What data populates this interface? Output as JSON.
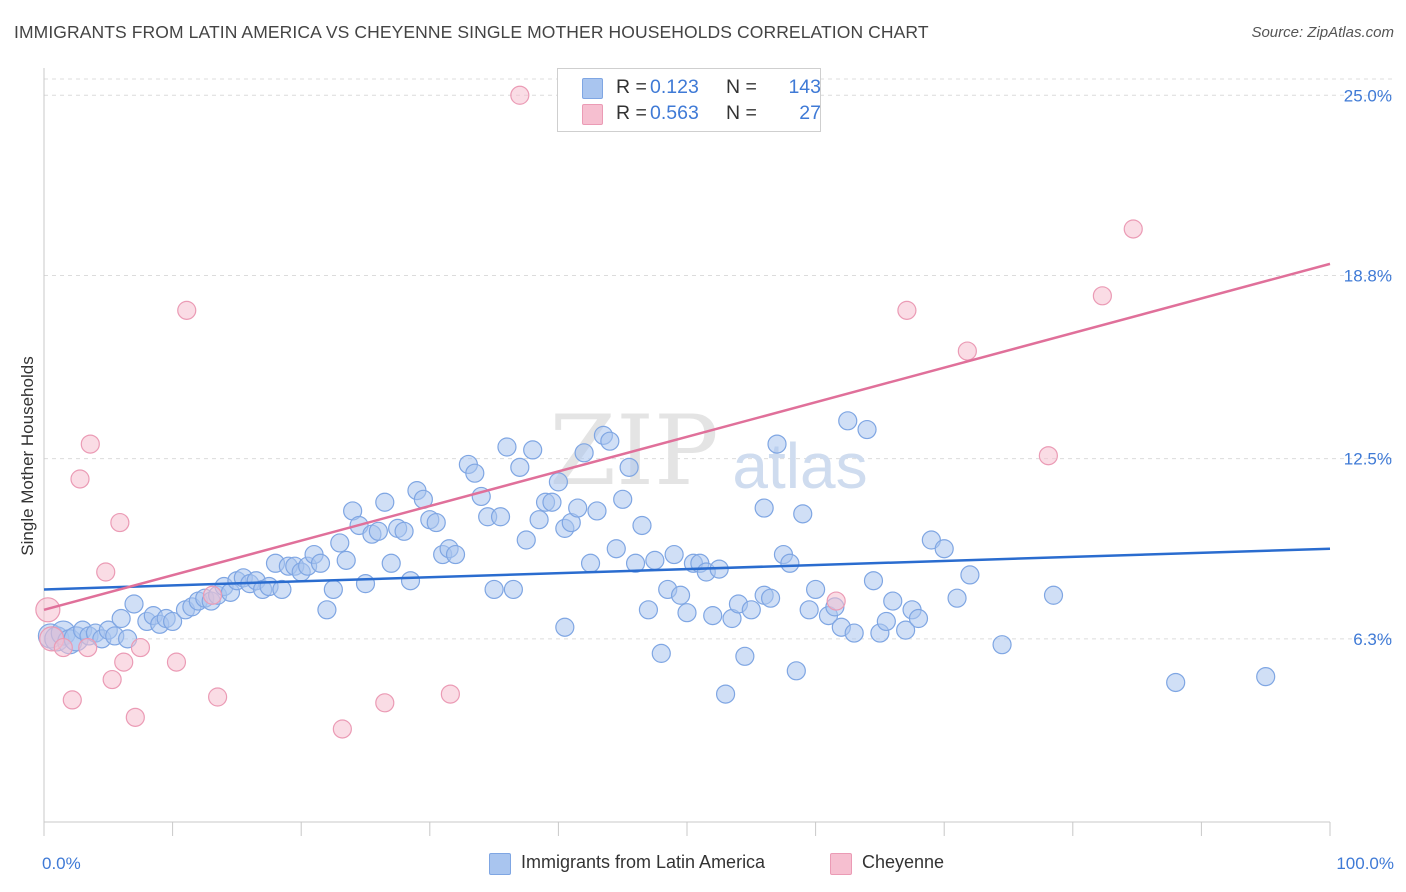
{
  "header": {
    "title": "IMMIGRANTS FROM LATIN AMERICA VS CHEYENNE SINGLE MOTHER HOUSEHOLDS CORRELATION CHART",
    "source": "Source: ZipAtlas.com"
  },
  "watermark": {
    "zip": "ZIP",
    "atlas": "atlas"
  },
  "legend_top": [
    {
      "r_label": "R =",
      "r_value": "0.123",
      "n_label": "N =",
      "n_value": "143"
    },
    {
      "r_label": "R =",
      "r_value": "0.563",
      "n_label": "N =",
      "n_value": "27"
    }
  ],
  "legend_bottom": [
    {
      "label": "Immigrants from Latin America"
    },
    {
      "label": "Cheyenne"
    }
  ],
  "chart_data": {
    "type": "scatter",
    "title": "IMMIGRANTS FROM LATIN AMERICA VS CHEYENNE SINGLE MOTHER HOUSEHOLDS CORRELATION CHART",
    "xlabel": "",
    "ylabel": "Single Mother Households",
    "xlim": [
      0,
      100
    ],
    "ylim": [
      0,
      25.8
    ],
    "x_tick_labels": [
      "0.0%",
      "100.0%"
    ],
    "y_ticks": [
      6.3,
      12.5,
      18.8,
      25.0
    ],
    "y_tick_labels": [
      "6.3%",
      "12.5%",
      "18.8%",
      "25.0%"
    ],
    "grid": "horizontal dashed",
    "colors": {
      "blue_fill": "#a9c5ef",
      "blue_stroke": "#7fa6e3",
      "blue_line": "#2a6ccf",
      "pink_fill": "#f6bfd0",
      "pink_stroke": "#eb9bb5",
      "pink_line": "#e0709a",
      "tick_label": "#3f7ad6"
    },
    "series": [
      {
        "name": "Immigrants from Latin America",
        "trend": {
          "x": [
            0,
            100
          ],
          "y": [
            8.0,
            9.4
          ]
        },
        "points": [
          [
            0.5,
            6.4
          ],
          [
            1.0,
            6.3
          ],
          [
            1.5,
            6.5
          ],
          [
            2.0,
            6.2
          ],
          [
            2.5,
            6.3
          ],
          [
            3.0,
            6.6
          ],
          [
            3.5,
            6.4
          ],
          [
            4.0,
            6.5
          ],
          [
            4.5,
            6.3
          ],
          [
            5.0,
            6.6
          ],
          [
            5.5,
            6.4
          ],
          [
            6.0,
            7.0
          ],
          [
            6.5,
            6.3
          ],
          [
            7.0,
            7.5
          ],
          [
            8.0,
            6.9
          ],
          [
            8.5,
            7.1
          ],
          [
            9.0,
            6.8
          ],
          [
            9.5,
            7.0
          ],
          [
            10.0,
            6.9
          ],
          [
            11.0,
            7.3
          ],
          [
            11.5,
            7.4
          ],
          [
            12.0,
            7.6
          ],
          [
            12.5,
            7.7
          ],
          [
            13.0,
            7.6
          ],
          [
            13.5,
            7.8
          ],
          [
            14.0,
            8.1
          ],
          [
            14.5,
            7.9
          ],
          [
            15.0,
            8.3
          ],
          [
            15.5,
            8.4
          ],
          [
            16.0,
            8.2
          ],
          [
            16.5,
            8.3
          ],
          [
            17.0,
            8.0
          ],
          [
            17.5,
            8.1
          ],
          [
            18.0,
            8.9
          ],
          [
            18.5,
            8.0
          ],
          [
            19.0,
            8.8
          ],
          [
            19.5,
            8.8
          ],
          [
            20.0,
            8.6
          ],
          [
            20.5,
            8.8
          ],
          [
            21.0,
            9.2
          ],
          [
            21.5,
            8.9
          ],
          [
            22.0,
            7.3
          ],
          [
            22.5,
            8.0
          ],
          [
            23.0,
            9.6
          ],
          [
            23.5,
            9.0
          ],
          [
            24.0,
            10.7
          ],
          [
            24.5,
            10.2
          ],
          [
            25.0,
            8.2
          ],
          [
            25.5,
            9.9
          ],
          [
            26.0,
            10.0
          ],
          [
            26.5,
            11.0
          ],
          [
            27.0,
            8.9
          ],
          [
            27.5,
            10.1
          ],
          [
            28.0,
            10.0
          ],
          [
            28.5,
            8.3
          ],
          [
            29.0,
            11.4
          ],
          [
            29.5,
            11.1
          ],
          [
            30.0,
            10.4
          ],
          [
            30.5,
            10.3
          ],
          [
            31.0,
            9.2
          ],
          [
            31.5,
            9.4
          ],
          [
            32.0,
            9.2
          ],
          [
            33.0,
            12.3
          ],
          [
            33.5,
            12.0
          ],
          [
            34.0,
            11.2
          ],
          [
            34.5,
            10.5
          ],
          [
            35.0,
            8.0
          ],
          [
            35.5,
            10.5
          ],
          [
            36.0,
            12.9
          ],
          [
            36.5,
            8.0
          ],
          [
            37.0,
            12.2
          ],
          [
            37.5,
            9.7
          ],
          [
            38.0,
            12.8
          ],
          [
            38.5,
            10.4
          ],
          [
            39.0,
            11.0
          ],
          [
            39.5,
            11.0
          ],
          [
            40.0,
            11.7
          ],
          [
            40.5,
            10.1
          ],
          [
            41.0,
            10.3
          ],
          [
            41.5,
            10.8
          ],
          [
            42.0,
            12.7
          ],
          [
            42.5,
            8.9
          ],
          [
            43.0,
            10.7
          ],
          [
            43.5,
            13.3
          ],
          [
            44.0,
            13.1
          ],
          [
            44.5,
            9.4
          ],
          [
            45.0,
            11.1
          ],
          [
            45.5,
            12.2
          ],
          [
            46.0,
            8.9
          ],
          [
            46.5,
            10.2
          ],
          [
            47.0,
            7.3
          ],
          [
            47.5,
            9.0
          ],
          [
            48.0,
            5.8
          ],
          [
            48.5,
            8.0
          ],
          [
            49.0,
            9.2
          ],
          [
            49.5,
            7.8
          ],
          [
            50.0,
            7.2
          ],
          [
            50.5,
            8.9
          ],
          [
            51.0,
            8.9
          ],
          [
            51.5,
            8.6
          ],
          [
            52.0,
            7.1
          ],
          [
            52.5,
            8.7
          ],
          [
            53.0,
            4.4
          ],
          [
            53.5,
            7.0
          ],
          [
            54.0,
            7.5
          ],
          [
            54.5,
            5.7
          ],
          [
            55.0,
            7.3
          ],
          [
            56.0,
            7.8
          ],
          [
            56.5,
            7.7
          ],
          [
            57.0,
            13.0
          ],
          [
            57.5,
            9.2
          ],
          [
            58.0,
            8.9
          ],
          [
            58.5,
            5.2
          ],
          [
            59.0,
            10.6
          ],
          [
            59.5,
            7.3
          ],
          [
            60.0,
            8.0
          ],
          [
            61.0,
            7.1
          ],
          [
            61.5,
            7.4
          ],
          [
            62.0,
            6.7
          ],
          [
            62.5,
            13.8
          ],
          [
            63.0,
            6.5
          ],
          [
            64.0,
            13.5
          ],
          [
            64.5,
            8.3
          ],
          [
            65.0,
            6.5
          ],
          [
            65.5,
            6.9
          ],
          [
            66.0,
            7.6
          ],
          [
            67.0,
            6.6
          ],
          [
            67.5,
            7.3
          ],
          [
            68.0,
            7.0
          ],
          [
            69.0,
            9.7
          ],
          [
            70.0,
            9.4
          ],
          [
            71.0,
            7.7
          ],
          [
            72.0,
            8.5
          ],
          [
            74.5,
            6.1
          ],
          [
            78.5,
            7.8
          ],
          [
            88.0,
            4.8
          ],
          [
            95.0,
            5.0
          ],
          [
            40.5,
            6.7
          ],
          [
            56.0,
            10.8
          ]
        ]
      },
      {
        "name": "Cheyenne",
        "trend": {
          "x": [
            0,
            100
          ],
          "y": [
            7.3,
            19.2
          ]
        },
        "points": [
          [
            0.3,
            7.3
          ],
          [
            0.6,
            6.3
          ],
          [
            1.5,
            6.0
          ],
          [
            2.2,
            4.2
          ],
          [
            2.8,
            11.8
          ],
          [
            3.4,
            6.0
          ],
          [
            3.6,
            13.0
          ],
          [
            4.8,
            8.6
          ],
          [
            5.3,
            4.9
          ],
          [
            5.9,
            10.3
          ],
          [
            6.2,
            5.5
          ],
          [
            7.1,
            3.6
          ],
          [
            7.5,
            6.0
          ],
          [
            10.3,
            5.5
          ],
          [
            11.1,
            17.6
          ],
          [
            13.1,
            7.8
          ],
          [
            13.5,
            4.3
          ],
          [
            23.2,
            3.2
          ],
          [
            26.5,
            4.1
          ],
          [
            31.6,
            4.4
          ],
          [
            37.0,
            25.0
          ],
          [
            61.6,
            7.6
          ],
          [
            67.1,
            17.6
          ],
          [
            71.8,
            16.2
          ],
          [
            78.1,
            12.6
          ],
          [
            82.3,
            18.1
          ],
          [
            84.7,
            20.4
          ]
        ]
      }
    ]
  }
}
